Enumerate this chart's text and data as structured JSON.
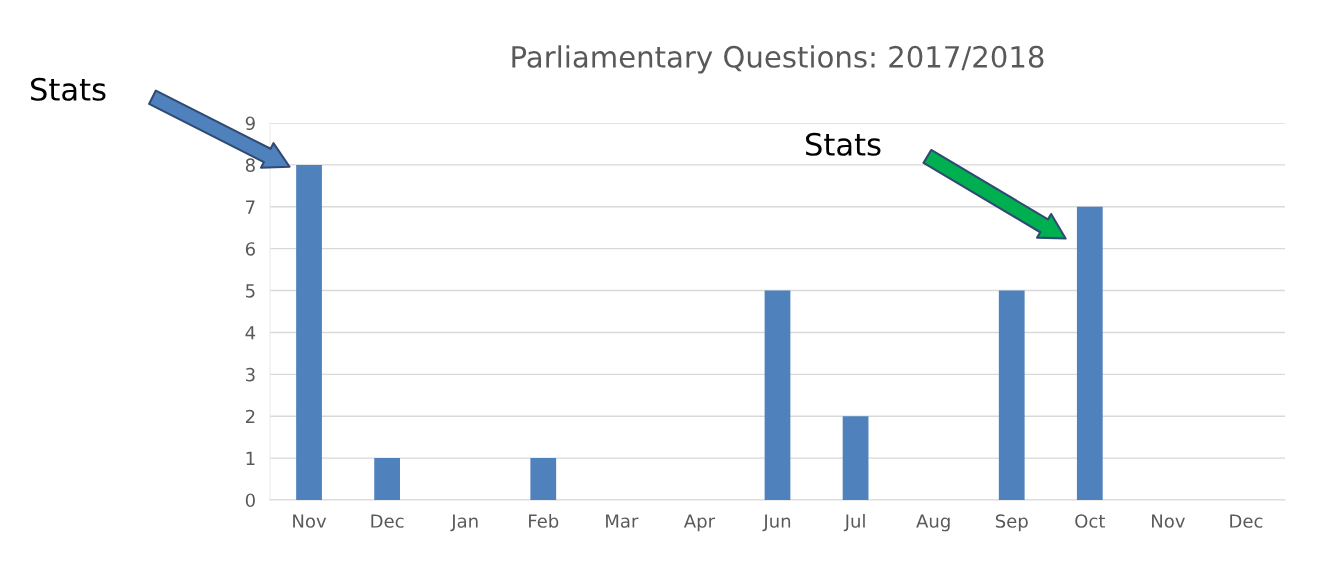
{
  "chart_data": {
    "type": "bar",
    "title": "Parliamentary Questions: 2017/2018",
    "categories": [
      "Nov",
      "Dec",
      "Jan",
      "Feb",
      "Mar",
      "Apr",
      "Jun",
      "Jul",
      "Aug",
      "Sep",
      "Oct",
      "Nov",
      "Dec"
    ],
    "values": [
      8,
      1,
      0,
      1,
      0,
      0,
      5,
      2,
      0,
      5,
      7,
      0,
      0
    ],
    "color": "#4f81bd",
    "ylim": [
      0,
      9
    ],
    "yticks": [
      0,
      1,
      2,
      3,
      4,
      5,
      6,
      7,
      8,
      9
    ],
    "grid": "y",
    "annotations": [
      "Stats",
      "Stats"
    ]
  }
}
